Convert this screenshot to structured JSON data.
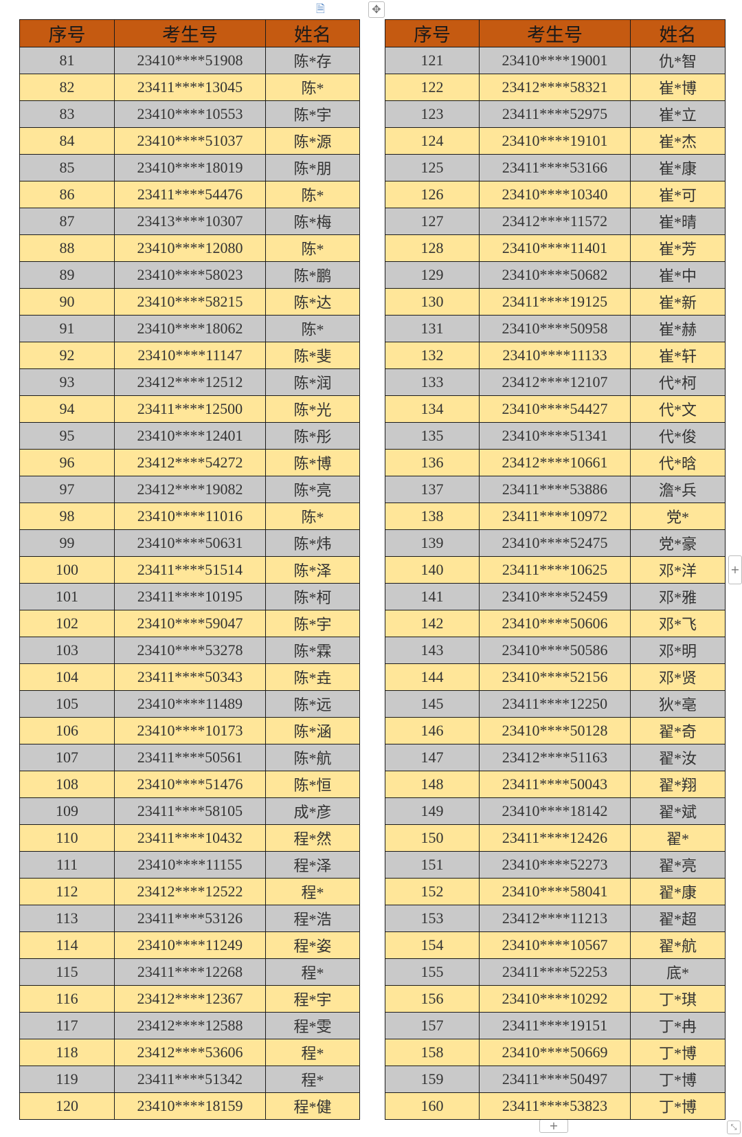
{
  "headers": [
    "序号",
    "考生号",
    "姓名"
  ],
  "colors": {
    "header": "#C55A11",
    "row_gray": "#C9C9C9",
    "row_yellow": "#FFE699"
  },
  "left": [
    [
      "81",
      "23410****51908",
      "陈*存"
    ],
    [
      "82",
      "23411****13045",
      "陈*"
    ],
    [
      "83",
      "23410****10553",
      "陈*宇"
    ],
    [
      "84",
      "23410****51037",
      "陈*源"
    ],
    [
      "85",
      "23410****18019",
      "陈*朋"
    ],
    [
      "86",
      "23411****54476",
      "陈*"
    ],
    [
      "87",
      "23413****10307",
      "陈*梅"
    ],
    [
      "88",
      "23410****12080",
      "陈*"
    ],
    [
      "89",
      "23410****58023",
      "陈*鹏"
    ],
    [
      "90",
      "23410****58215",
      "陈*达"
    ],
    [
      "91",
      "23410****18062",
      "陈*"
    ],
    [
      "92",
      "23410****11147",
      "陈*斐"
    ],
    [
      "93",
      "23412****12512",
      "陈*润"
    ],
    [
      "94",
      "23411****12500",
      "陈*光"
    ],
    [
      "95",
      "23410****12401",
      "陈*彤"
    ],
    [
      "96",
      "23412****54272",
      "陈*博"
    ],
    [
      "97",
      "23412****19082",
      "陈*亮"
    ],
    [
      "98",
      "23410****11016",
      "陈*"
    ],
    [
      "99",
      "23410****50631",
      "陈*炜"
    ],
    [
      "100",
      "23411****51514",
      "陈*泽"
    ],
    [
      "101",
      "23411****10195",
      "陈*柯"
    ],
    [
      "102",
      "23410****59047",
      "陈*宇"
    ],
    [
      "103",
      "23410****53278",
      "陈*霖"
    ],
    [
      "104",
      "23411****50343",
      "陈*垚"
    ],
    [
      "105",
      "23410****11489",
      "陈*远"
    ],
    [
      "106",
      "23410****10173",
      "陈*涵"
    ],
    [
      "107",
      "23411****50561",
      "陈*航"
    ],
    [
      "108",
      "23410****51476",
      "陈*恒"
    ],
    [
      "109",
      "23411****58105",
      "成*彦"
    ],
    [
      "110",
      "23411****10432",
      "程*然"
    ],
    [
      "111",
      "23410****11155",
      "程*泽"
    ],
    [
      "112",
      "23412****12522",
      "程*"
    ],
    [
      "113",
      "23411****53126",
      "程*浩"
    ],
    [
      "114",
      "23410****11249",
      "程*姿"
    ],
    [
      "115",
      "23411****12268",
      "程*"
    ],
    [
      "116",
      "23412****12367",
      "程*宇"
    ],
    [
      "117",
      "23412****12588",
      "程*雯"
    ],
    [
      "118",
      "23412****53606",
      "程*"
    ],
    [
      "119",
      "23411****51342",
      "程*"
    ],
    [
      "120",
      "23410****18159",
      "程*健"
    ]
  ],
  "right": [
    [
      "121",
      "23410****19001",
      "仇*智"
    ],
    [
      "122",
      "23412****58321",
      "崔*博"
    ],
    [
      "123",
      "23411****52975",
      "崔*立"
    ],
    [
      "124",
      "23410****19101",
      "崔*杰"
    ],
    [
      "125",
      "23411****53166",
      "崔*康"
    ],
    [
      "126",
      "23410****10340",
      "崔*可"
    ],
    [
      "127",
      "23412****11572",
      "崔*晴"
    ],
    [
      "128",
      "23410****11401",
      "崔*芳"
    ],
    [
      "129",
      "23410****50682",
      "崔*中"
    ],
    [
      "130",
      "23411****19125",
      "崔*新"
    ],
    [
      "131",
      "23410****50958",
      "崔*赫"
    ],
    [
      "132",
      "23410****11133",
      "崔*轩"
    ],
    [
      "133",
      "23412****12107",
      "代*柯"
    ],
    [
      "134",
      "23410****54427",
      "代*文"
    ],
    [
      "135",
      "23410****51341",
      "代*俊"
    ],
    [
      "136",
      "23412****10661",
      "代*晗"
    ],
    [
      "137",
      "23411****53886",
      "澹*兵"
    ],
    [
      "138",
      "23411****10972",
      "党*"
    ],
    [
      "139",
      "23410****52475",
      "党*豪"
    ],
    [
      "140",
      "23411****10625",
      "邓*洋"
    ],
    [
      "141",
      "23410****52459",
      "邓*雅"
    ],
    [
      "142",
      "23410****50606",
      "邓*飞"
    ],
    [
      "143",
      "23410****50586",
      "邓*明"
    ],
    [
      "144",
      "23410****52156",
      "邓*贤"
    ],
    [
      "145",
      "23411****12250",
      "狄*亳"
    ],
    [
      "146",
      "23410****50128",
      "翟*奇"
    ],
    [
      "147",
      "23412****51163",
      "翟*汝"
    ],
    [
      "148",
      "23411****50043",
      "翟*翔"
    ],
    [
      "149",
      "23410****18142",
      "翟*斌"
    ],
    [
      "150",
      "23411****12426",
      "翟*"
    ],
    [
      "151",
      "23410****52273",
      "翟*亮"
    ],
    [
      "152",
      "23410****58041",
      "翟*康"
    ],
    [
      "153",
      "23412****11213",
      "翟*超"
    ],
    [
      "154",
      "23410****10567",
      "翟*航"
    ],
    [
      "155",
      "23411****52253",
      "底*"
    ],
    [
      "156",
      "23410****10292",
      "丁*琪"
    ],
    [
      "157",
      "23411****19151",
      "丁*冉"
    ],
    [
      "158",
      "23410****50669",
      "丁*博"
    ],
    [
      "159",
      "23411****50497",
      "丁*博"
    ],
    [
      "160",
      "23411****53823",
      "丁*博"
    ]
  ],
  "ui": {
    "add": "+",
    "move": "✥",
    "doc": "🗎"
  }
}
